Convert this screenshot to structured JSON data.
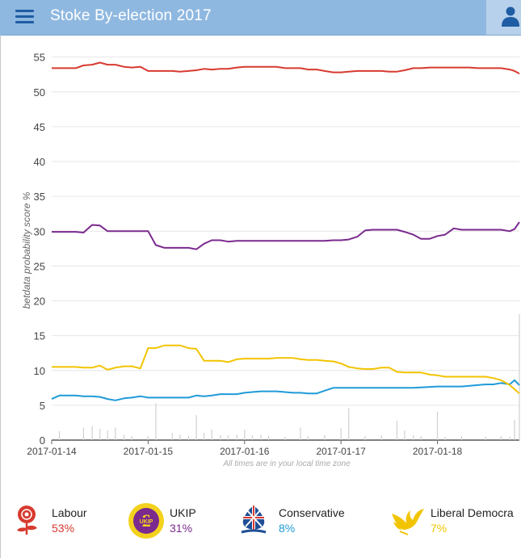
{
  "header": {
    "title": "Stoke By-election 2017"
  },
  "colors": {
    "labour": "#d73a2f",
    "ukip": "#7b2a8e",
    "conservative": "#1f9bd7",
    "libdem": "#f2c400",
    "grid": "#e6e6e6",
    "axis": "#333333"
  },
  "icons": {
    "menu": "hamburger-icon",
    "user": "user-icon"
  },
  "legend": [
    {
      "name": "Labour",
      "pct": "53%",
      "color": "#d73a2f"
    },
    {
      "name": "UKIP",
      "pct": "31%",
      "color": "#7b2a8e"
    },
    {
      "name": "Conservative",
      "pct": "8%",
      "color": "#1f9bd7"
    },
    {
      "name": "Liberal Democra",
      "pct": "7%",
      "color": "#f2c400"
    }
  ],
  "chart_data": {
    "type": "line",
    "title": "",
    "xlabel": "All times are in your local time zone",
    "ylabel": "betdata probability score %",
    "xlim": [
      0,
      4.85
    ],
    "ylim": [
      0,
      56
    ],
    "yticks": [
      0,
      5,
      10,
      15,
      20,
      25,
      30,
      35,
      40,
      45,
      50,
      55
    ],
    "xticks": [
      {
        "x": 0,
        "label": "2017-01-14"
      },
      {
        "x": 1,
        "label": "2017-01-15"
      },
      {
        "x": 2,
        "label": "2017-01-16"
      },
      {
        "x": 3,
        "label": "2017-01-17"
      },
      {
        "x": 4,
        "label": "2017-01-18"
      }
    ],
    "series": [
      {
        "name": "Labour",
        "color": "#d73a2f",
        "x": [
          0,
          0.25,
          0.33,
          0.42,
          0.5,
          0.58,
          0.66,
          0.75,
          0.83,
          0.92,
          1.0,
          1.08,
          1.17,
          1.25,
          1.33,
          1.42,
          1.5,
          1.58,
          1.66,
          1.75,
          1.83,
          1.92,
          2.0,
          2.08,
          2.17,
          2.25,
          2.33,
          2.42,
          2.5,
          2.58,
          2.66,
          2.75,
          2.83,
          2.92,
          3.0,
          3.08,
          3.17,
          3.25,
          3.33,
          3.42,
          3.5,
          3.58,
          3.66,
          3.75,
          3.83,
          3.92,
          4.0,
          4.08,
          4.17,
          4.25,
          4.33,
          4.42,
          4.5,
          4.58,
          4.66,
          4.75,
          4.8,
          4.85
        ],
        "values": [
          53.4,
          53.4,
          53.8,
          53.9,
          54.2,
          53.9,
          53.9,
          53.6,
          53.5,
          53.6,
          53.0,
          53.0,
          53.0,
          53.0,
          52.9,
          53.0,
          53.1,
          53.3,
          53.2,
          53.3,
          53.3,
          53.5,
          53.6,
          53.6,
          53.6,
          53.6,
          53.6,
          53.4,
          53.4,
          53.4,
          53.2,
          53.2,
          53.0,
          52.8,
          52.8,
          52.9,
          53.0,
          53.0,
          53.0,
          53.0,
          52.9,
          52.9,
          53.1,
          53.4,
          53.4,
          53.5,
          53.5,
          53.5,
          53.5,
          53.5,
          53.5,
          53.4,
          53.4,
          53.4,
          53.4,
          53.2,
          53.0,
          52.6
        ]
      },
      {
        "name": "UKIP",
        "color": "#7b2a8e",
        "x": [
          0,
          0.25,
          0.33,
          0.42,
          0.5,
          0.58,
          0.66,
          0.75,
          0.83,
          0.92,
          1.0,
          1.08,
          1.17,
          1.25,
          1.33,
          1.42,
          1.5,
          1.58,
          1.66,
          1.75,
          1.83,
          1.92,
          2.0,
          2.25,
          2.5,
          2.66,
          2.75,
          2.83,
          2.92,
          3.0,
          3.08,
          3.17,
          3.25,
          3.33,
          3.42,
          3.5,
          3.58,
          3.66,
          3.75,
          3.83,
          3.92,
          4.0,
          4.08,
          4.17,
          4.25,
          4.33,
          4.42,
          4.5,
          4.58,
          4.66,
          4.75,
          4.8,
          4.85
        ],
        "values": [
          29.9,
          29.9,
          29.8,
          30.9,
          30.8,
          30.0,
          30.0,
          30.0,
          30.0,
          30.0,
          30.0,
          28.0,
          27.6,
          27.6,
          27.6,
          27.6,
          27.4,
          28.2,
          28.7,
          28.7,
          28.5,
          28.6,
          28.6,
          28.6,
          28.6,
          28.6,
          28.6,
          28.6,
          28.7,
          28.7,
          28.8,
          29.2,
          30.1,
          30.2,
          30.2,
          30.2,
          30.2,
          29.9,
          29.5,
          28.9,
          28.9,
          29.3,
          29.5,
          30.4,
          30.2,
          30.2,
          30.2,
          30.2,
          30.2,
          30.2,
          30.0,
          30.3,
          31.3
        ]
      },
      {
        "name": "Conservative",
        "color": "#1f9bd7",
        "x": [
          0,
          0.08,
          0.25,
          0.33,
          0.42,
          0.5,
          0.58,
          0.66,
          0.75,
          0.83,
          0.92,
          1.0,
          1.08,
          1.17,
          1.25,
          1.33,
          1.42,
          1.5,
          1.58,
          1.66,
          1.75,
          1.83,
          1.92,
          2.0,
          2.08,
          2.17,
          2.25,
          2.33,
          2.42,
          2.5,
          2.58,
          2.66,
          2.75,
          2.83,
          2.92,
          3.0,
          3.25,
          3.5,
          3.75,
          4.0,
          4.25,
          4.5,
          4.58,
          4.66,
          4.75,
          4.8,
          4.85
        ],
        "values": [
          5.9,
          6.4,
          6.4,
          6.3,
          6.3,
          6.2,
          5.9,
          5.7,
          6.0,
          6.1,
          6.3,
          6.1,
          6.1,
          6.1,
          6.1,
          6.1,
          6.1,
          6.4,
          6.3,
          6.4,
          6.6,
          6.6,
          6.6,
          6.8,
          6.9,
          7.0,
          7.0,
          7.0,
          6.9,
          6.8,
          6.8,
          6.7,
          6.7,
          7.1,
          7.5,
          7.5,
          7.5,
          7.5,
          7.5,
          7.7,
          7.7,
          8.0,
          8.0,
          8.2,
          8.0,
          8.6,
          7.9
        ]
      },
      {
        "name": "Liberal Democrat",
        "color": "#f2c400",
        "x": [
          0,
          0.25,
          0.33,
          0.42,
          0.5,
          0.58,
          0.66,
          0.75,
          0.83,
          0.92,
          1.0,
          1.08,
          1.17,
          1.25,
          1.33,
          1.42,
          1.5,
          1.58,
          1.66,
          1.75,
          1.83,
          1.92,
          2.0,
          2.08,
          2.17,
          2.25,
          2.33,
          2.42,
          2.5,
          2.58,
          2.66,
          2.75,
          2.83,
          2.92,
          3.0,
          3.08,
          3.17,
          3.25,
          3.33,
          3.42,
          3.5,
          3.58,
          3.66,
          3.75,
          3.83,
          3.92,
          4.0,
          4.08,
          4.17,
          4.25,
          4.33,
          4.42,
          4.5,
          4.58,
          4.66,
          4.75,
          4.8,
          4.85
        ],
        "values": [
          10.5,
          10.5,
          10.4,
          10.4,
          10.7,
          10.1,
          10.4,
          10.6,
          10.6,
          10.3,
          13.2,
          13.2,
          13.6,
          13.6,
          13.6,
          13.2,
          13.1,
          11.4,
          11.4,
          11.4,
          11.2,
          11.6,
          11.7,
          11.7,
          11.7,
          11.7,
          11.8,
          11.8,
          11.8,
          11.6,
          11.5,
          11.5,
          11.4,
          11.3,
          11.0,
          10.5,
          10.3,
          10.2,
          10.2,
          10.4,
          10.4,
          9.8,
          9.7,
          9.7,
          9.7,
          9.4,
          9.3,
          9.1,
          9.1,
          9.1,
          9.1,
          9.1,
          9.1,
          8.9,
          8.6,
          7.9,
          7.3,
          6.7
        ]
      }
    ],
    "volume": {
      "x": [
        0.08,
        0.33,
        0.42,
        0.5,
        0.58,
        0.66,
        0.75,
        0.83,
        1.0,
        1.08,
        1.25,
        1.33,
        1.42,
        1.5,
        1.58,
        1.66,
        1.75,
        1.83,
        1.92,
        2.0,
        2.08,
        2.17,
        2.25,
        2.42,
        2.58,
        2.66,
        2.83,
        3.0,
        3.08,
        3.25,
        3.42,
        3.58,
        3.66,
        3.75,
        3.83,
        4.0,
        4.08,
        4.25,
        4.5,
        4.66,
        4.75,
        4.8,
        4.85
      ],
      "values": [
        1.3,
        1.8,
        2.0,
        1.6,
        1.4,
        1.8,
        0.8,
        0.6,
        0.6,
        5.3,
        1.0,
        0.8,
        0.6,
        3.6,
        1.0,
        1.5,
        0.7,
        0.7,
        0.8,
        1.5,
        0.7,
        0.8,
        0.6,
        0.5,
        1.8,
        0.6,
        0.7,
        1.7,
        4.6,
        0.6,
        0.7,
        2.8,
        1.4,
        0.7,
        0.6,
        4.1,
        0.5,
        0.6,
        0.5,
        0.6,
        0.5,
        2.9,
        18.1
      ]
    }
  }
}
